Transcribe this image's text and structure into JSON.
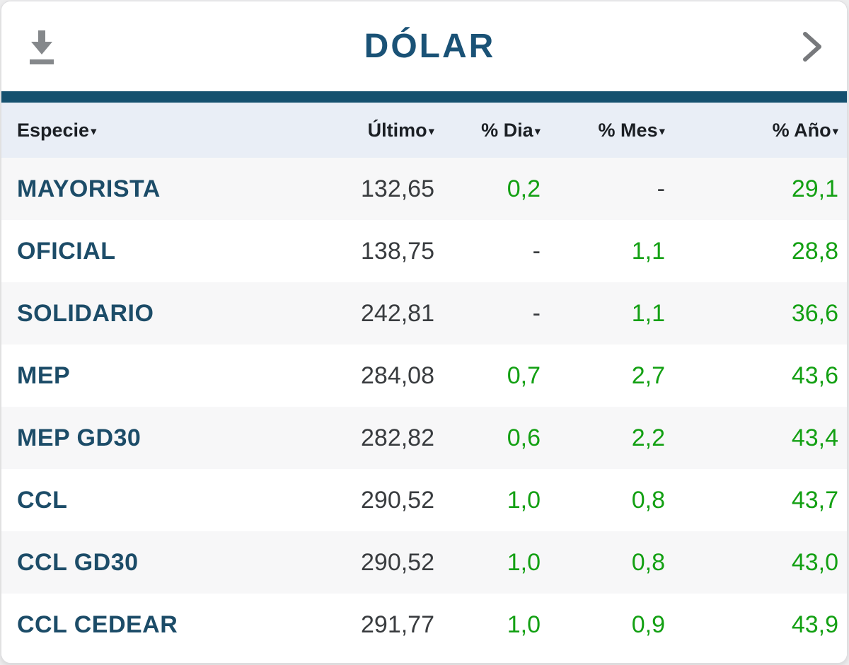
{
  "header": {
    "title": "DÓLAR"
  },
  "icons": {
    "download": "download-icon",
    "chevron_right": "chevron-right-icon",
    "sort": "caret-down-icon"
  },
  "table": {
    "columns": [
      {
        "label": "Especie",
        "caret": "▾"
      },
      {
        "label": "Último",
        "caret": "▾"
      },
      {
        "label": "% Dia",
        "caret": "▾"
      },
      {
        "label": "% Mes",
        "caret": "▾"
      },
      {
        "label": "% Año",
        "caret": "▾"
      }
    ],
    "rows": [
      {
        "especie": "MAYORISTA",
        "ultimo": "132,65",
        "dia": "0,2",
        "mes": "-",
        "ano": "29,1"
      },
      {
        "especie": "OFICIAL",
        "ultimo": "138,75",
        "dia": "-",
        "mes": "1,1",
        "ano": "28,8"
      },
      {
        "especie": "SOLIDARIO",
        "ultimo": "242,81",
        "dia": "-",
        "mes": "1,1",
        "ano": "36,6"
      },
      {
        "especie": "MEP",
        "ultimo": "284,08",
        "dia": "0,7",
        "mes": "2,7",
        "ano": "43,6"
      },
      {
        "especie": "MEP GD30",
        "ultimo": "282,82",
        "dia": "0,6",
        "mes": "2,2",
        "ano": "43,4"
      },
      {
        "especie": "CCL",
        "ultimo": "290,52",
        "dia": "1,0",
        "mes": "0,8",
        "ano": "43,7"
      },
      {
        "especie": "CCL GD30",
        "ultimo": "290,52",
        "dia": "1,0",
        "mes": "0,8",
        "ano": "43,0"
      },
      {
        "especie": "CCL CEDEAR",
        "ultimo": "291,77",
        "dia": "1,0",
        "mes": "0,9",
        "ano": "43,9"
      }
    ]
  },
  "colors": {
    "accent_bar": "#15516f",
    "title_blue": "#1a5276",
    "especie_blue": "#1c4c68",
    "header_row_bg": "#e9eef6",
    "positive_green": "#13a013",
    "value_dark": "#393c3f",
    "alt_row_bg": "#f7f7f8",
    "icon_gray": "#85888b"
  }
}
